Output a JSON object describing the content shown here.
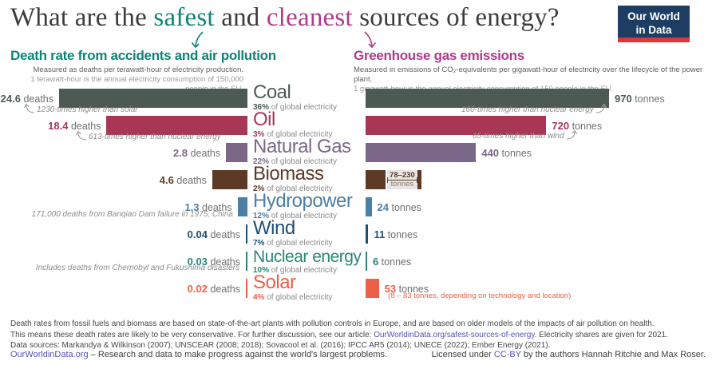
{
  "title": {
    "part1": "What are the ",
    "safest": "safest",
    "part2": " and ",
    "cleanest": "cleanest",
    "part3": " sources of energy?"
  },
  "logo": {
    "line1": "Our World",
    "line2": "in Data"
  },
  "colors": {
    "safest_accent": "#0b8577",
    "cleanest_accent": "#b03a8c",
    "link": "#5353b8",
    "annotation": "#8c8c8c",
    "logo_bg": "#1d3d63",
    "logo_stripe": "#e0373f"
  },
  "left_panel": {
    "heading": "Death rate from accidents and air pollution",
    "sub1": "Measured as deaths per terawatt-hour of electricity production.",
    "sub2": "1 terawatt-hour is the annual electricity consumption of 150,000 people in the EU."
  },
  "right_panel": {
    "heading": "Greenhouse gas emissions",
    "sub1": "Measured in emissions of CO₂-equivalents per gigawatt-hour of electricity over the lifecycle of the power plant.",
    "sub2": "1 gigawatt-hour is the annual electricity consumption of 150 people in the EU."
  },
  "chart_data": {
    "type": "bar",
    "orientation": "horizontal",
    "categories": [
      "Coal",
      "Oil",
      "Natural Gas",
      "Biomass",
      "Hydropower",
      "Wind",
      "Nuclear energy",
      "Solar"
    ],
    "series": [
      {
        "name": "Death rate from accidents and air pollution",
        "unit": "deaths per terawatt-hour",
        "values": [
          24.6,
          18.4,
          2.8,
          4.6,
          1.3,
          0.04,
          0.03,
          0.02
        ]
      },
      {
        "name": "Greenhouse gas emissions",
        "unit": "tonnes of CO₂-equivalents per gigawatt-hour",
        "values": [
          970,
          720,
          440,
          78,
          24,
          11,
          6,
          53
        ]
      }
    ],
    "left_axis": {
      "label": "deaths",
      "max": 24.6
    },
    "right_axis": {
      "label": "tonnes",
      "max": 970
    },
    "rows": [
      {
        "slug": "coal",
        "name": "Coal",
        "share": "36%",
        "share_suffix": " of global electricity",
        "color": "#4d5a53",
        "deaths": 24.6,
        "deaths_label": "24.6",
        "deaths_unit": " deaths",
        "tonnes": 970,
        "tonnes_label": "970",
        "tonnes_unit": " tonnes",
        "left_annotation": "1230-times higher than solar",
        "right_annotation": "160-times higher than nuclear energy"
      },
      {
        "slug": "oil",
        "name": "Oil",
        "share": "3%",
        "share_suffix": " of global electricity",
        "color": "#a73754",
        "deaths": 18.4,
        "deaths_label": "18.4",
        "deaths_unit": " deaths",
        "tonnes": 720,
        "tonnes_label": "720",
        "tonnes_unit": " tonnes",
        "left_annotation": "613-times higher than nuclear energy",
        "right_annotation": "65-times higher than wind"
      },
      {
        "slug": "natural-gas",
        "name": "Natural Gas",
        "share": "22%",
        "share_suffix": " of global electricity",
        "color": "#7b6888",
        "deaths": 2.8,
        "deaths_label": "2.8",
        "deaths_unit": " deaths",
        "tonnes": 440,
        "tonnes_label": "440",
        "tonnes_unit": " tonnes"
      },
      {
        "slug": "biomass",
        "name": "Biomass",
        "share": "2%",
        "share_suffix": " of global electricity",
        "color": "#5d3a26",
        "deaths": 4.6,
        "deaths_label": "4.6",
        "deaths_unit": " deaths",
        "tonnes": 78,
        "tonnes_range": {
          "min": 78,
          "max": 230,
          "label": "78–230",
          "unit": "tonnes"
        }
      },
      {
        "slug": "hydro",
        "name": "Hydropower",
        "share": "12%",
        "share_suffix": " of global electricity",
        "color": "#4c7fa5",
        "deaths": 1.3,
        "deaths_label": "1.3",
        "deaths_unit": " deaths",
        "tonnes": 24,
        "tonnes_label": "24",
        "tonnes_unit": " tonnes",
        "left_note": "171,000 deaths from Banqiao Dam failure in 1975, China"
      },
      {
        "slug": "wind",
        "name": "Wind",
        "share": "7%",
        "share_suffix": " of global electricity",
        "color": "#1d4f72",
        "deaths": 0.04,
        "deaths_label": "0.04",
        "deaths_unit": " deaths",
        "tonnes": 11,
        "tonnes_label": "11",
        "tonnes_unit": " tonnes"
      },
      {
        "slug": "nuclear",
        "name": "Nuclear energy",
        "share": "10%",
        "share_suffix": " of global electricity",
        "color": "#2a8678",
        "deaths": 0.03,
        "deaths_label": "0.03",
        "deaths_unit": " deaths",
        "tonnes": 6,
        "tonnes_label": "6",
        "tonnes_unit": " tonnes",
        "left_note": "Includes deaths from Chernobyl and Fukushima disasters"
      },
      {
        "slug": "solar",
        "name": "Solar",
        "share": "4%",
        "share_suffix": " of global electricity",
        "color": "#ec6049",
        "deaths": 0.02,
        "deaths_label": "0.02",
        "deaths_unit": " deaths",
        "tonnes": 53,
        "tonnes_label": "53",
        "tonnes_unit": " tonnes",
        "right_note": "(8 – 83 tonnes, depending on technology and location)"
      }
    ]
  },
  "footer": {
    "line1": "Death rates from fossil fuels and biomass are based on state-of-the-art plants with pollution controls in Europe, and are based on older models of the impacts of air pollution on health.",
    "line2_pre": "This means these death rates are likely to be very conservative. For further discussion, see our article: ",
    "line2_link": "OurWorldinData.org/safest-sources-of-energy",
    "line2_post": ". Electricity shares are given for 2021.",
    "line3": "Data sources: Markandya & Wilkinson (2007); UNSCEAR (2008; 2018); Sovacool et al. (2016); IPCC AR5 (2014); UNECE (2022); Ember Energy (2021).",
    "bottom_left_link": "OurWorldinData.org",
    "bottom_left_text": " – Research and data to make progress against the world's largest problems.",
    "bottom_right_pre": "Licensed under ",
    "bottom_right_link": "CC-BY",
    "bottom_right_post": " by the authors Hannah Ritchie and Max Roser."
  }
}
